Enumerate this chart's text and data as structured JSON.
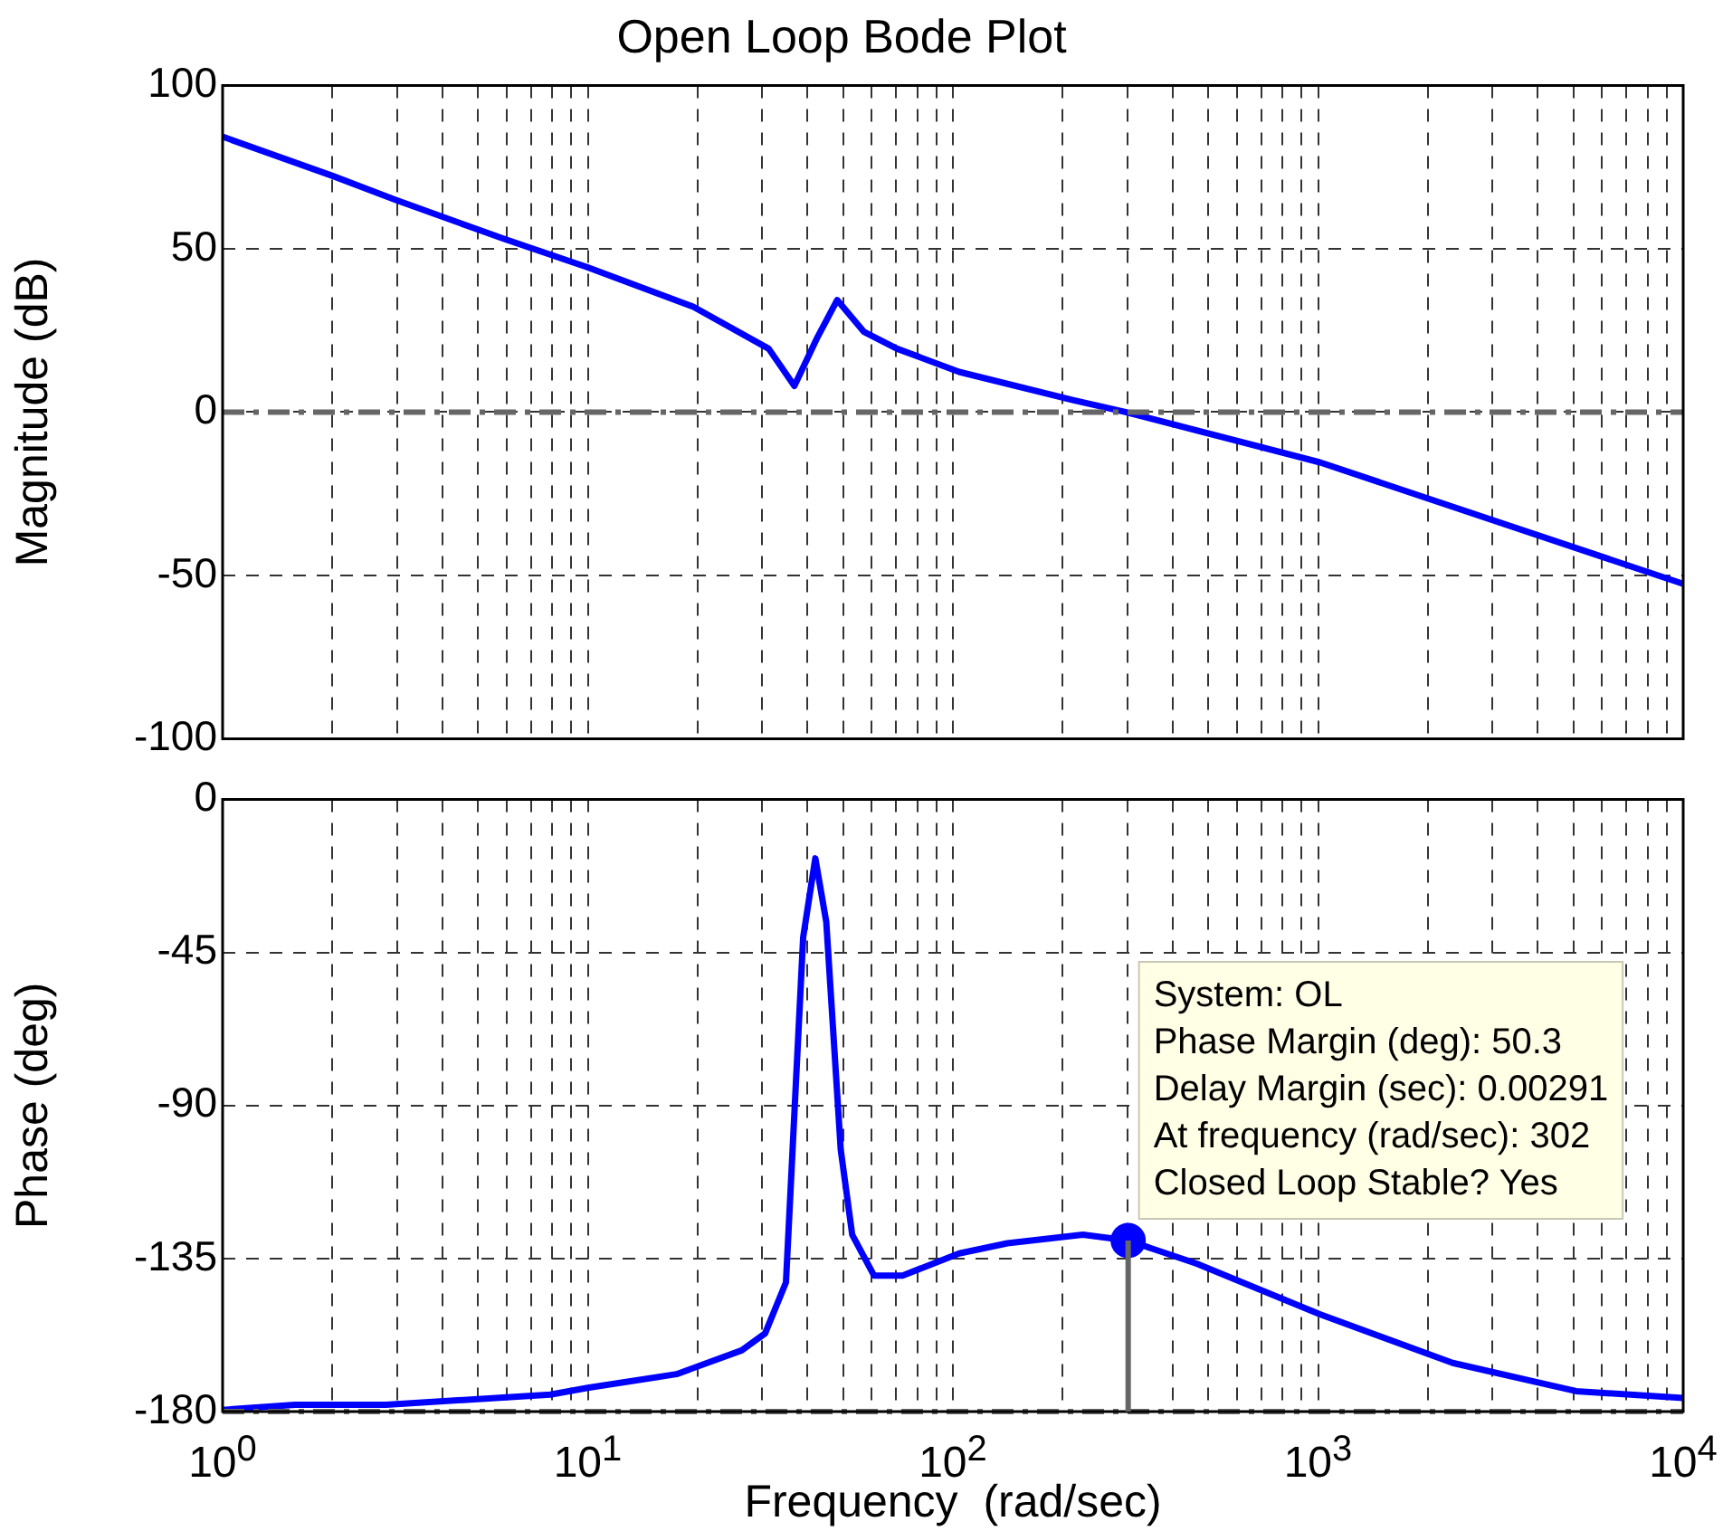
{
  "chart_data": [
    {
      "type": "line",
      "title": "Open Loop Bode Plot",
      "ylabel": "Magnitude (dB)",
      "log": "x",
      "grid": true,
      "tick_labels": "y",
      "xlim": [
        1,
        10000
      ],
      "xticks": [
        {
          "value": 1,
          "label": null
        },
        {
          "value": 2,
          "label": null
        },
        {
          "value": 3,
          "label": null
        },
        {
          "value": 4,
          "label": null
        },
        {
          "value": 5,
          "label": null
        },
        {
          "value": 6,
          "label": null
        },
        {
          "value": 7,
          "label": null
        },
        {
          "value": 8,
          "label": null
        },
        {
          "value": 9,
          "label": null
        },
        {
          "value": 10,
          "label": null
        },
        {
          "value": 20,
          "label": null
        },
        {
          "value": 30,
          "label": null
        },
        {
          "value": 40,
          "label": null
        },
        {
          "value": 50,
          "label": null
        },
        {
          "value": 60,
          "label": null
        },
        {
          "value": 70,
          "label": null
        },
        {
          "value": 80,
          "label": null
        },
        {
          "value": 90,
          "label": null
        },
        {
          "value": 100,
          "label": null
        },
        {
          "value": 200,
          "label": null
        },
        {
          "value": 300,
          "label": null
        },
        {
          "value": 400,
          "label": null
        },
        {
          "value": 500,
          "label": null
        },
        {
          "value": 600,
          "label": null
        },
        {
          "value": 700,
          "label": null
        },
        {
          "value": 800,
          "label": null
        },
        {
          "value": 900,
          "label": null
        },
        {
          "value": 1000,
          "label": null
        },
        {
          "value": 2000,
          "label": null
        },
        {
          "value": 3000,
          "label": null
        },
        {
          "value": 4000,
          "label": null
        },
        {
          "value": 5000,
          "label": null
        },
        {
          "value": 6000,
          "label": null
        },
        {
          "value": 7000,
          "label": null
        },
        {
          "value": 8000,
          "label": null
        },
        {
          "value": 9000,
          "label": null
        },
        {
          "value": 10000,
          "label": null
        }
      ],
      "ylim": [
        -100,
        100
      ],
      "yticks": [
        -100,
        -50,
        0,
        50,
        100
      ],
      "ref_lines": [
        {
          "axis": "y",
          "value": 0,
          "color": "#666666"
        }
      ],
      "series": [
        {
          "type": "line",
          "color": "#0000ff",
          "marker": "none",
          "x": [
            1,
            2,
            2.97,
            5.9,
            10,
            19.4,
            31.3,
            36.8,
            42.3,
            48.2,
            57,
            70.3,
            104,
            213,
            297,
            1012,
            10000
          ],
          "values": [
            84.3,
            72.3,
            65,
            53,
            44.3,
            32.3,
            19.4,
            8,
            22.3,
            34.3,
            24.6,
            19.4,
            12.3,
            3.7,
            0,
            -15.4,
            -52.6
          ]
        }
      ]
    },
    {
      "type": "line",
      "ylabel": "Phase (deg)",
      "xlabel": "Frequency  (rad/sec)",
      "log": "x",
      "grid": true,
      "xlim": [
        1,
        10000
      ],
      "xticks": [
        {
          "value": 1,
          "label": "10$^{0}$"
        },
        {
          "value": 2,
          "label": null
        },
        {
          "value": 3,
          "label": null
        },
        {
          "value": 4,
          "label": null
        },
        {
          "value": 5,
          "label": null
        },
        {
          "value": 6,
          "label": null
        },
        {
          "value": 7,
          "label": null
        },
        {
          "value": 8,
          "label": null
        },
        {
          "value": 9,
          "label": null
        },
        {
          "value": 10,
          "label": "10$^{1}$"
        },
        {
          "value": 20,
          "label": null
        },
        {
          "value": 30,
          "label": null
        },
        {
          "value": 40,
          "label": null
        },
        {
          "value": 50,
          "label": null
        },
        {
          "value": 60,
          "label": null
        },
        {
          "value": 70,
          "label": null
        },
        {
          "value": 80,
          "label": null
        },
        {
          "value": 90,
          "label": null
        },
        {
          "value": 100,
          "label": "10$^{2}$"
        },
        {
          "value": 200,
          "label": null
        },
        {
          "value": 300,
          "label": null
        },
        {
          "value": 400,
          "label": null
        },
        {
          "value": 500,
          "label": null
        },
        {
          "value": 600,
          "label": null
        },
        {
          "value": 700,
          "label": null
        },
        {
          "value": 800,
          "label": null
        },
        {
          "value": 900,
          "label": null
        },
        {
          "value": 1000,
          "label": "10$^{3}$"
        },
        {
          "value": 2000,
          "label": null
        },
        {
          "value": 3000,
          "label": null
        },
        {
          "value": 4000,
          "label": null
        },
        {
          "value": 5000,
          "label": null
        },
        {
          "value": 6000,
          "label": null
        },
        {
          "value": 7000,
          "label": null
        },
        {
          "value": 8000,
          "label": null
        },
        {
          "value": 9000,
          "label": null
        },
        {
          "value": 10000,
          "label": "10$^{4}$"
        }
      ],
      "ylim": [
        -180,
        0
      ],
      "yticks": [
        -180,
        -135,
        -90,
        -45,
        0
      ],
      "ref_lines": [
        {
          "axis": "y",
          "value": -180,
          "color": "#666666"
        }
      ],
      "annotations": [
        {
          "text": "System: OL\nPhase Margin (deg): 50.3\nDelay Margin (sec): 0.00291\nAt frequency (rad/sec): 302\nClosed Loop Stable? Yes",
          "x": 302,
          "y": -129.7
        }
      ],
      "series": [
        {
          "type": "line",
          "color": "#0000ff",
          "marker": "none",
          "x": [
            1,
            1.58,
            2.8,
            7.9,
            10,
            17.5,
            26.4,
            30.6,
            34.9,
            38.9,
            42,
            45,
            49.3,
            53,
            60.8,
            72.8,
            104,
            141,
            227,
            302,
            465,
            1012,
            2337,
            5087,
            10000
          ],
          "values": [
            -179.5,
            -178,
            -178,
            -175,
            -173,
            -169,
            -162,
            -157,
            -142,
            -40.5,
            -17.3,
            -36,
            -103,
            -128,
            -140,
            -140,
            -133.5,
            -130.5,
            -128,
            -129.7,
            -136.5,
            -151.4,
            -165.7,
            -174,
            -176
          ]
        },
        {
          "type": "scatter",
          "color": "#0000ff",
          "marker": "circle",
          "x": [
            302
          ],
          "values": [
            -129.7
          ]
        }
      ]
    }
  ]
}
